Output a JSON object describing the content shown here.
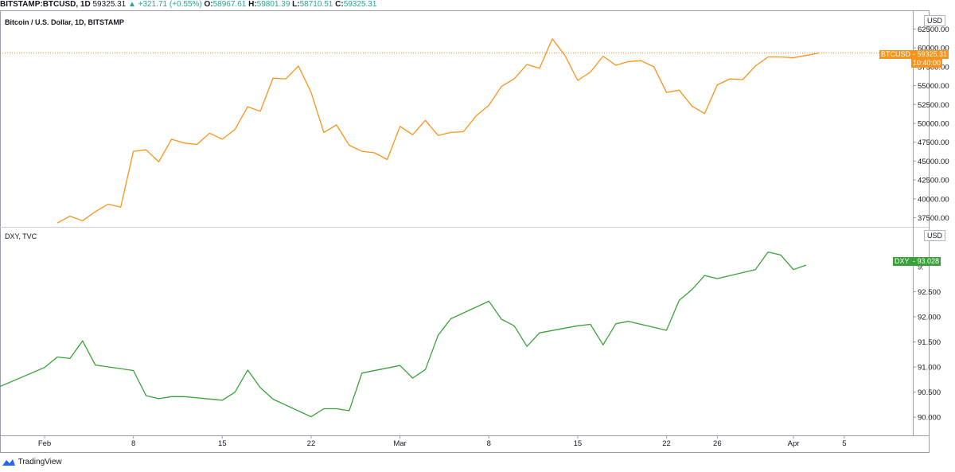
{
  "header": {
    "symbol": "BITSTAMP:BTCUSD, 1D",
    "price": "59325.31",
    "change": "▲ +321.71 (+0.55%)",
    "open_label": "O:",
    "open": "58967.61",
    "high_label": "H:",
    "high": "59801.39",
    "low_label": "L:",
    "low": "58710.51",
    "close_label": "C:",
    "close": "59325.31"
  },
  "footer": {
    "brand": "TradingView"
  },
  "colors": {
    "btc": "#f7931a",
    "dxy": "#3aa13a",
    "grid": "#e6e8ec"
  },
  "chart_data": [
    {
      "type": "line",
      "title": "Bitcoin / U.S. Dollar, 1D, BITSTAMP",
      "currency": "USD",
      "series": [
        {
          "name": "BTCUSD",
          "color": "#f7931a"
        }
      ],
      "last_value_label": "59325.31",
      "last_time_label": "10:40:00",
      "series_tag": "BTCUSD",
      "ylim": [
        36500,
        63500
      ],
      "yticks": [
        37500,
        40000,
        42500,
        45000,
        47500,
        50000,
        52500,
        55000,
        57500,
        60000,
        62500
      ],
      "ytick_labels": [
        "37500.00",
        "40000.00",
        "42500.00",
        "45000.00",
        "47500.00",
        "50000.00",
        "52500.00",
        "55000.00",
        "57500.00",
        "60000.00",
        "62500.00"
      ],
      "points": [
        [
          "2021-02-02",
          36800
        ],
        [
          "2021-02-03",
          37700
        ],
        [
          "2021-02-04",
          37100
        ],
        [
          "2021-02-05",
          38300
        ],
        [
          "2021-02-06",
          39300
        ],
        [
          "2021-02-07",
          38900
        ],
        [
          "2021-02-08",
          46300
        ],
        [
          "2021-02-09",
          46500
        ],
        [
          "2021-02-10",
          44900
        ],
        [
          "2021-02-11",
          47900
        ],
        [
          "2021-02-12",
          47400
        ],
        [
          "2021-02-13",
          47200
        ],
        [
          "2021-02-14",
          48700
        ],
        [
          "2021-02-15",
          47900
        ],
        [
          "2021-02-16",
          49200
        ],
        [
          "2021-02-17",
          52200
        ],
        [
          "2021-02-18",
          51600
        ],
        [
          "2021-02-19",
          56000
        ],
        [
          "2021-02-20",
          55900
        ],
        [
          "2021-02-21",
          57600
        ],
        [
          "2021-02-22",
          54100
        ],
        [
          "2021-02-23",
          48800
        ],
        [
          "2021-02-24",
          49800
        ],
        [
          "2021-02-25",
          47100
        ],
        [
          "2021-02-26",
          46300
        ],
        [
          "2021-02-27",
          46100
        ],
        [
          "2021-02-28",
          45200
        ],
        [
          "2021-03-01",
          49600
        ],
        [
          "2021-03-02",
          48500
        ],
        [
          "2021-03-03",
          50400
        ],
        [
          "2021-03-04",
          48400
        ],
        [
          "2021-03-05",
          48800
        ],
        [
          "2021-03-06",
          48900
        ],
        [
          "2021-03-07",
          51000
        ],
        [
          "2021-03-08",
          52400
        ],
        [
          "2021-03-09",
          54900
        ],
        [
          "2021-03-10",
          55900
        ],
        [
          "2021-03-11",
          57800
        ],
        [
          "2021-03-12",
          57300
        ],
        [
          "2021-03-13",
          61200
        ],
        [
          "2021-03-14",
          59000
        ],
        [
          "2021-03-15",
          55700
        ],
        [
          "2021-03-16",
          56800
        ],
        [
          "2021-03-17",
          58900
        ],
        [
          "2021-03-18",
          57700
        ],
        [
          "2021-03-19",
          58200
        ],
        [
          "2021-03-20",
          58300
        ],
        [
          "2021-03-21",
          57500
        ],
        [
          "2021-03-22",
          54100
        ],
        [
          "2021-03-23",
          54400
        ],
        [
          "2021-03-24",
          52300
        ],
        [
          "2021-03-25",
          51300
        ],
        [
          "2021-03-26",
          55100
        ],
        [
          "2021-03-27",
          55900
        ],
        [
          "2021-03-28",
          55800
        ],
        [
          "2021-03-29",
          57600
        ],
        [
          "2021-03-30",
          58800
        ],
        [
          "2021-03-31",
          58800
        ],
        [
          "2021-04-01",
          58700
        ],
        [
          "2021-04-02",
          59000
        ],
        [
          "2021-04-03",
          59325
        ]
      ]
    },
    {
      "type": "line",
      "title": "DXY, TVC",
      "currency": "USD",
      "series": [
        {
          "name": "DXY",
          "color": "#3aa13a"
        }
      ],
      "last_value_label": "93.028",
      "series_tag": "DXY",
      "ylim": [
        89.75,
        93.6
      ],
      "yticks": [
        90.0,
        90.5,
        91.0,
        91.5,
        92.0,
        92.5
      ],
      "ytick_labels": [
        "90.000",
        "90.500",
        "91.000",
        "91.500",
        "92.000",
        "92.500"
      ],
      "top_tick_partial": "9:",
      "points": [
        [
          "2021-01-28",
          90.56
        ],
        [
          "2021-02-01",
          90.99
        ],
        [
          "2021-02-02",
          91.2
        ],
        [
          "2021-02-03",
          91.17
        ],
        [
          "2021-02-04",
          91.52
        ],
        [
          "2021-02-05",
          91.04
        ],
        [
          "2021-02-08",
          90.93
        ],
        [
          "2021-02-09",
          90.43
        ],
        [
          "2021-02-10",
          90.37
        ],
        [
          "2021-02-11",
          90.41
        ],
        [
          "2021-02-12",
          90.41
        ],
        [
          "2021-02-15",
          90.34
        ],
        [
          "2021-02-16",
          90.5
        ],
        [
          "2021-02-17",
          90.94
        ],
        [
          "2021-02-18",
          90.59
        ],
        [
          "2021-02-19",
          90.36
        ],
        [
          "2021-02-22",
          90.01
        ],
        [
          "2021-02-23",
          90.17
        ],
        [
          "2021-02-24",
          90.17
        ],
        [
          "2021-02-25",
          90.13
        ],
        [
          "2021-02-26",
          90.88
        ],
        [
          "2021-03-01",
          91.03
        ],
        [
          "2021-03-02",
          90.78
        ],
        [
          "2021-03-03",
          90.95
        ],
        [
          "2021-03-04",
          91.63
        ],
        [
          "2021-03-05",
          91.96
        ],
        [
          "2021-03-08",
          92.31
        ],
        [
          "2021-03-09",
          91.95
        ],
        [
          "2021-03-10",
          91.82
        ],
        [
          "2021-03-11",
          91.41
        ],
        [
          "2021-03-12",
          91.68
        ],
        [
          "2021-03-15",
          91.82
        ],
        [
          "2021-03-16",
          91.85
        ],
        [
          "2021-03-17",
          91.44
        ],
        [
          "2021-03-18",
          91.86
        ],
        [
          "2021-03-19",
          91.91
        ],
        [
          "2021-03-22",
          91.73
        ],
        [
          "2021-03-23",
          92.33
        ],
        [
          "2021-03-24",
          92.54
        ],
        [
          "2021-03-25",
          92.82
        ],
        [
          "2021-03-26",
          92.76
        ],
        [
          "2021-03-29",
          92.94
        ],
        [
          "2021-03-30",
          93.29
        ],
        [
          "2021-03-31",
          93.23
        ],
        [
          "2021-04-01",
          92.94
        ],
        [
          "2021-04-02",
          93.03
        ]
      ]
    }
  ],
  "time_axis": {
    "labels": [
      {
        "date": "2021-02-01",
        "text": "Feb"
      },
      {
        "date": "2021-02-08",
        "text": "8"
      },
      {
        "date": "2021-02-15",
        "text": "15"
      },
      {
        "date": "2021-02-22",
        "text": "22"
      },
      {
        "date": "2021-03-01",
        "text": "Mar"
      },
      {
        "date": "2021-03-08",
        "text": "8"
      },
      {
        "date": "2021-03-15",
        "text": "15"
      },
      {
        "date": "2021-03-22",
        "text": "22"
      },
      {
        "date": "2021-03-26",
        "text": "26"
      },
      {
        "date": "2021-04-01",
        "text": "Apr"
      },
      {
        "date": "2021-04-05",
        "text": "5"
      }
    ]
  }
}
